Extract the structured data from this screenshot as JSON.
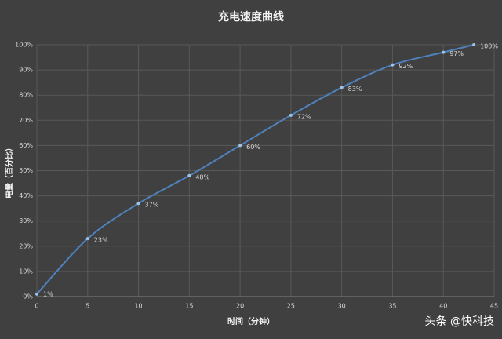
{
  "chart_data": {
    "type": "line",
    "title": "充电速度曲线",
    "x_label": "时间（分钟）",
    "y_label": "电量（百分比）",
    "x": [
      0,
      5,
      10,
      15,
      20,
      25,
      30,
      35,
      40,
      43
    ],
    "series": [
      {
        "name": "电量",
        "color": "#4f81bd",
        "values": [
          1,
          23,
          37,
          48,
          60,
          72,
          83,
          92,
          97,
          100
        ],
        "value_labels": [
          "1%",
          "23%",
          "37%",
          "48%",
          "60%",
          "72%",
          "83%",
          "92%",
          "97%",
          "100%"
        ]
      }
    ],
    "xlim": [
      0,
      45
    ],
    "xticks": [
      0,
      5,
      10,
      15,
      20,
      25,
      30,
      35,
      40,
      45
    ],
    "ylim": [
      0,
      100
    ],
    "yticks": [
      {
        "value": 0,
        "label": "0%"
      },
      {
        "value": 10,
        "label": "10%"
      },
      {
        "value": 20,
        "label": "20%"
      },
      {
        "value": 30,
        "label": "30%"
      },
      {
        "value": 40,
        "label": "40%"
      },
      {
        "value": 50,
        "label": "50%"
      },
      {
        "value": 60,
        "label": "60%"
      },
      {
        "value": 70,
        "label": "70%"
      },
      {
        "value": 80,
        "label": "80%"
      },
      {
        "value": 90,
        "label": "90%"
      },
      {
        "value": 100,
        "label": "100%"
      }
    ],
    "grid": true,
    "watermark": "头条 @快科技"
  }
}
